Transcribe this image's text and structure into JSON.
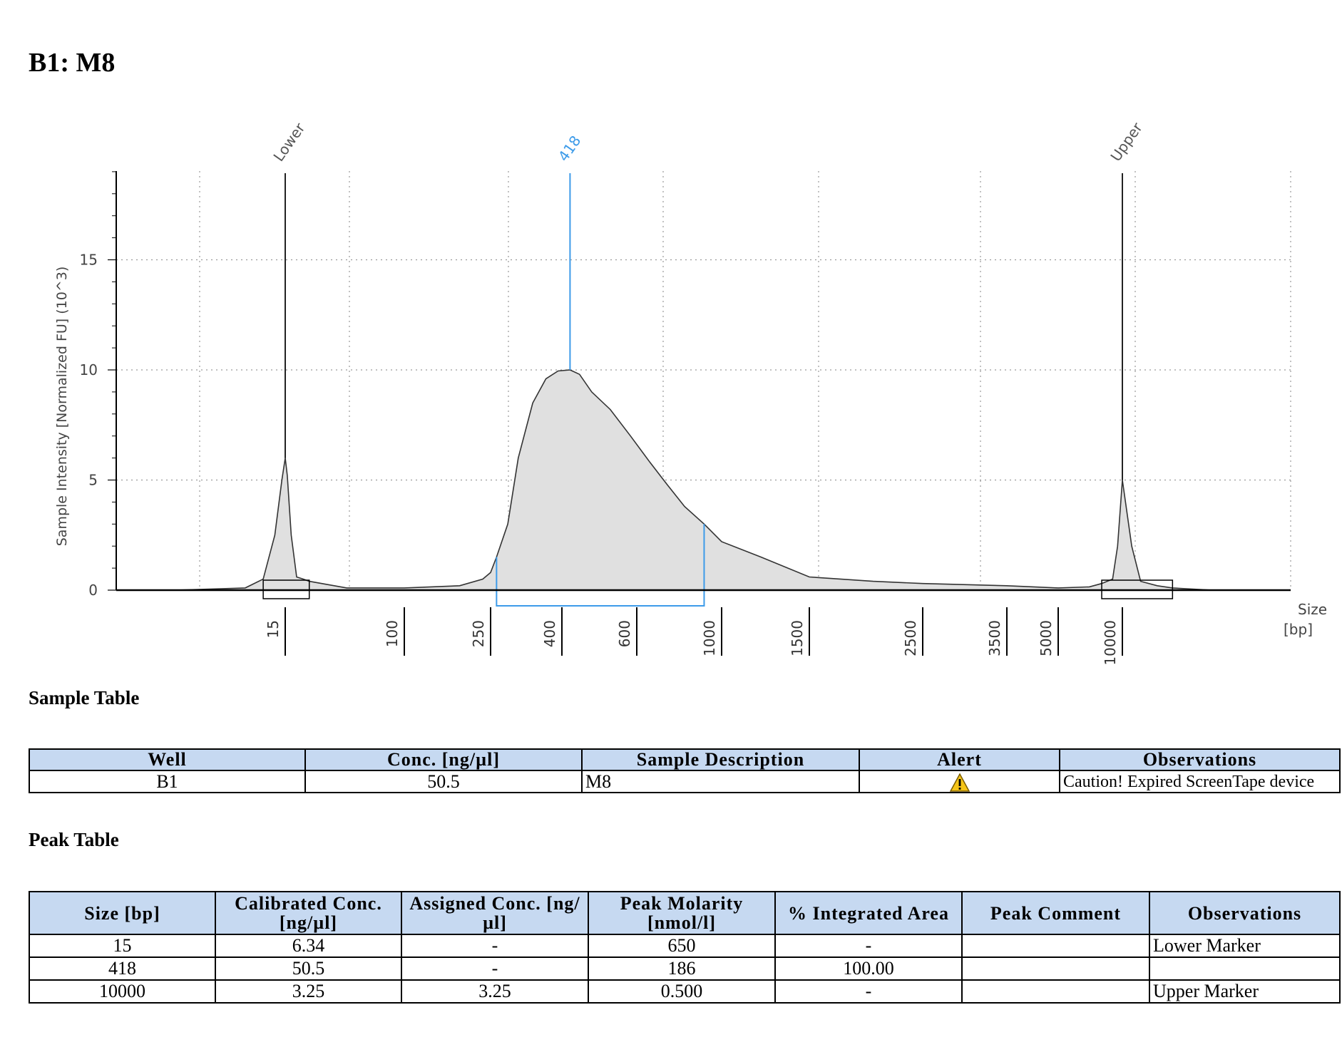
{
  "page_title": "B1: M8",
  "chart_data": {
    "type": "line",
    "title": "",
    "xlabel": "Size",
    "xlabel_unit": "[bp]",
    "ylabel": "Sample Intensity [Normalized FU] (10^3)",
    "ylim": [
      0,
      19
    ],
    "y_ticks": [
      "0",
      "5",
      "10",
      "15"
    ],
    "x_ticks": [
      "15",
      "100",
      "250",
      "400",
      "600",
      "1000",
      "1500",
      "2500",
      "3500",
      "5000",
      "10000"
    ],
    "grid": true,
    "peak_labels": [
      {
        "label": "Lower",
        "size_bp": 15,
        "color": "#555555"
      },
      {
        "label": "418",
        "size_bp": 418,
        "color": "#3d9be9"
      },
      {
        "label": "Upper",
        "size_bp": 10000,
        "color": "#555555"
      }
    ],
    "region": {
      "from_bp": 260,
      "to_bp": 900,
      "color": "#3d9be9"
    },
    "series": [
      {
        "x": [
          5,
          10,
          12,
          13.5,
          14.5,
          15,
          15.5,
          16.5,
          18,
          20,
          22,
          40,
          100,
          180,
          230,
          250,
          260,
          280,
          300,
          330,
          360,
          390,
          418,
          440,
          470,
          520,
          580,
          650,
          720,
          800,
          900,
          1000,
          1200,
          1500,
          2000,
          2500,
          3500,
          5000,
          7000,
          8000,
          9000,
          9500,
          10000,
          10500,
          11000,
          12000,
          13000,
          16000
        ],
        "y": [
          0.0,
          0.1,
          0.5,
          2.5,
          5.0,
          6.0,
          5.2,
          2.5,
          0.6,
          0.5,
          0.4,
          0.1,
          0.1,
          0.2,
          0.5,
          0.8,
          1.5,
          3.0,
          6.0,
          8.5,
          9.6,
          9.95,
          10.0,
          9.8,
          9.0,
          8.2,
          7.0,
          5.8,
          4.8,
          3.8,
          3.0,
          2.2,
          1.5,
          0.6,
          0.4,
          0.3,
          0.2,
          0.1,
          0.15,
          0.3,
          0.5,
          2.0,
          5.0,
          2.0,
          0.4,
          0.2,
          0.1,
          0.0
        ]
      }
    ]
  },
  "sample_table": {
    "title": "Sample Table",
    "headers": [
      "Well",
      "Conc. [ng/µl]",
      "Sample Description",
      "Alert",
      "Observations"
    ],
    "rows": [
      {
        "well": "B1",
        "conc": "50.5",
        "description": "M8",
        "alert_icon": "warning-icon",
        "observations": "Caution! Expired ScreenTape device"
      }
    ]
  },
  "peak_table": {
    "title": "Peak Table",
    "headers": [
      "Size [bp]",
      "Calibrated Conc. [ng/µl]",
      "Assigned Conc. [ng/µl]",
      "Peak Molarity [nmol/l]",
      "% Integrated Area",
      "Peak Comment",
      "Observations"
    ],
    "rows": [
      [
        "15",
        "6.34",
        "-",
        "650",
        "-",
        "",
        "Lower Marker"
      ],
      [
        "418",
        "50.5",
        "-",
        "186",
        "100.00",
        "",
        ""
      ],
      [
        "10000",
        "3.25",
        "3.25",
        "0.500",
        "-",
        "",
        "Upper Marker"
      ]
    ]
  },
  "colors": {
    "header_fill": "#c6d9f1",
    "peak_fill": "#e0e0e0",
    "highlight": "#3d9be9",
    "warning": "#f5c518"
  }
}
